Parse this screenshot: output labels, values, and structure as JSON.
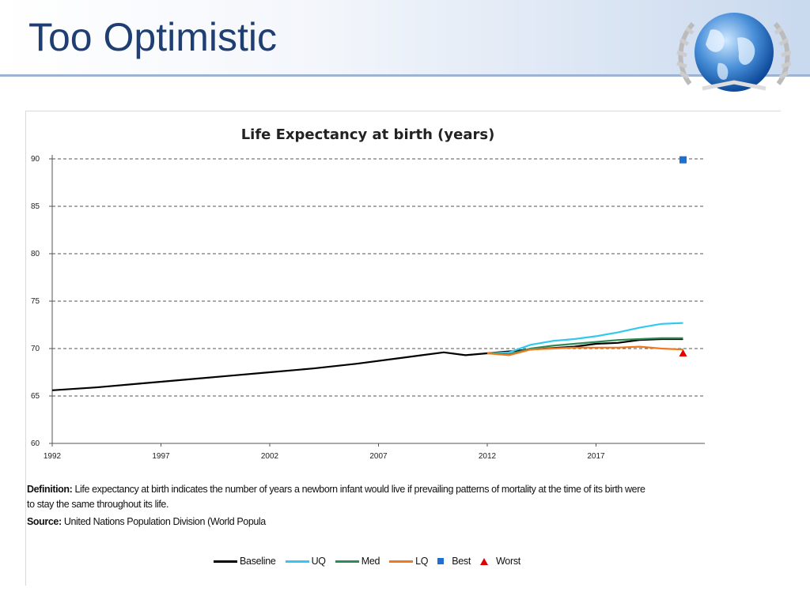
{
  "slide": {
    "title": "Too Optimistic",
    "logo_icon": "globe-laurel-icon"
  },
  "chart_data": {
    "type": "line",
    "title": "Life Expectancy at birth (years)",
    "xlabel": "",
    "ylabel": "",
    "xlim": [
      1992,
      2022
    ],
    "ylim": [
      60,
      90
    ],
    "x_ticks": [
      "1992",
      "1997",
      "2002",
      "2007",
      "2012",
      "2017"
    ],
    "y_ticks": [
      "90",
      "85",
      "80",
      "75",
      "70",
      "65",
      "60"
    ],
    "grid": true,
    "legend_position": "bottom",
    "series": [
      {
        "name": "Baseline",
        "color": "#000000",
        "points": [
          [
            1992,
            65.6
          ],
          [
            1994,
            65.9
          ],
          [
            1996,
            66.3
          ],
          [
            1998,
            66.7
          ],
          [
            2000,
            67.1
          ],
          [
            2002,
            67.5
          ],
          [
            2004,
            67.9
          ],
          [
            2006,
            68.4
          ],
          [
            2008,
            69.0
          ],
          [
            2009,
            69.3
          ],
          [
            2010,
            69.6
          ],
          [
            2011,
            69.3
          ],
          [
            2012,
            69.5
          ],
          [
            2014,
            69.9
          ],
          [
            2016,
            70.2
          ],
          [
            2017,
            70.5
          ],
          [
            2018,
            70.6
          ],
          [
            2019,
            70.9
          ],
          [
            2020,
            71.0
          ],
          [
            2021,
            71.0
          ]
        ]
      },
      {
        "name": "UQ",
        "color": "#33c8f0",
        "points": [
          [
            2012,
            69.5
          ],
          [
            2013,
            69.6
          ],
          [
            2014,
            70.4
          ],
          [
            2015,
            70.8
          ],
          [
            2016,
            71.0
          ],
          [
            2017,
            71.3
          ],
          [
            2018,
            71.7
          ],
          [
            2019,
            72.2
          ],
          [
            2020,
            72.6
          ],
          [
            2021,
            72.7
          ]
        ]
      },
      {
        "name": "Med",
        "color": "#2e8b57",
        "points": [
          [
            2012,
            69.5
          ],
          [
            2013,
            69.4
          ],
          [
            2014,
            70.0
          ],
          [
            2015,
            70.3
          ],
          [
            2016,
            70.5
          ],
          [
            2017,
            70.7
          ],
          [
            2018,
            70.9
          ],
          [
            2019,
            71.0
          ],
          [
            2020,
            71.1
          ],
          [
            2021,
            71.1
          ]
        ]
      },
      {
        "name": "LQ",
        "color": "#f07820",
        "points": [
          [
            2012,
            69.5
          ],
          [
            2013,
            69.3
          ],
          [
            2014,
            69.9
          ],
          [
            2015,
            70.0
          ],
          [
            2016,
            70.1
          ],
          [
            2017,
            70.1
          ],
          [
            2018,
            70.1
          ],
          [
            2019,
            70.2
          ],
          [
            2020,
            70.0
          ],
          [
            2021,
            69.9
          ]
        ]
      }
    ],
    "markers": [
      {
        "name": "Best",
        "shape": "square",
        "color": "#1f6fd0",
        "x": 2021,
        "y": 89.9
      },
      {
        "name": "Worst",
        "shape": "triangle",
        "color": "#e00000",
        "x": 2021,
        "y": 69.5
      }
    ],
    "annotations": {
      "definition_label": "Definition:",
      "definition_line1": "Life expectancy at birth indicates the number of years a newborn infant would live if prevailing patterns of mortality at the time of its birth were",
      "definition_line2": "to stay the same throughout its life.",
      "source_label": "Source:",
      "source_text": "United Nations Population Division (World Popula"
    }
  }
}
